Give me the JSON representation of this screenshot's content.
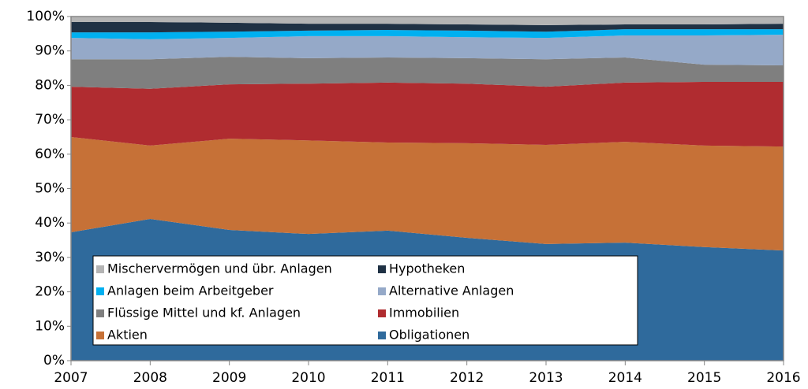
{
  "chart_data": {
    "type": "stacked_area",
    "x": [
      2007,
      2008,
      2009,
      2010,
      2011,
      2012,
      2013,
      2014,
      2015,
      2016
    ],
    "xlim": [
      2007,
      2016
    ],
    "xticks": [
      2007,
      2008,
      2009,
      2010,
      2011,
      2012,
      2013,
      2014,
      2015,
      2016
    ],
    "ylim": [
      0,
      100
    ],
    "yticks": [
      {
        "value": 0,
        "label": "0%"
      },
      {
        "value": 10,
        "label": "10%"
      },
      {
        "value": 20,
        "label": "20%"
      },
      {
        "value": 30,
        "label": "30%"
      },
      {
        "value": 40,
        "label": "40%"
      },
      {
        "value": 50,
        "label": "50%"
      },
      {
        "value": 60,
        "label": "60%"
      },
      {
        "value": 70,
        "label": "70%"
      },
      {
        "value": 80,
        "label": "80%"
      },
      {
        "value": 90,
        "label": "90%"
      },
      {
        "value": 100,
        "label": "100%"
      }
    ],
    "legend": "bottom-left",
    "series": [
      {
        "name": "Obligationen",
        "color": "#2f6a9c",
        "values": [
          37.3,
          41.2,
          38.0,
          36.8,
          37.8,
          35.7,
          33.9,
          34.3,
          33.0,
          32.0
        ]
      },
      {
        "name": "Aktien",
        "color": "#c67137",
        "values": [
          27.7,
          21.3,
          26.5,
          27.2,
          25.6,
          27.5,
          28.8,
          29.3,
          29.5,
          30.2
        ]
      },
      {
        "name": "Immobilien",
        "color": "#b02c30",
        "values": [
          14.6,
          16.5,
          15.8,
          16.5,
          17.4,
          17.3,
          16.9,
          17.2,
          18.5,
          18.8
        ]
      },
      {
        "name": "Flüssige Mittel und kf. Anlagen",
        "color": "#7f7f7f",
        "values": [
          8.0,
          8.6,
          8.0,
          7.4,
          7.3,
          7.4,
          8.0,
          7.3,
          5.0,
          4.8
        ]
      },
      {
        "name": "Alternative Anlagen",
        "color": "#95a9c8",
        "values": [
          6.2,
          5.8,
          5.5,
          6.4,
          6.2,
          6.1,
          6.2,
          6.4,
          8.5,
          8.9
        ]
      },
      {
        "name": "Anlagen beim Arbeitgeber",
        "color": "#00b0f0",
        "values": [
          1.6,
          2.0,
          1.8,
          1.6,
          1.8,
          1.9,
          1.8,
          1.8,
          1.8,
          1.6
        ]
      },
      {
        "name": "Hypotheken",
        "color": "#1f3144",
        "values": [
          3.0,
          3.0,
          2.6,
          2.0,
          1.8,
          1.8,
          1.9,
          1.4,
          1.4,
          1.6
        ]
      },
      {
        "name": "Mischervermögen und übr. Anlagen",
        "color": "#b4b4b4",
        "values": [
          1.6,
          1.6,
          1.8,
          2.1,
          2.1,
          2.3,
          2.5,
          2.3,
          2.3,
          2.1
        ]
      }
    ]
  }
}
